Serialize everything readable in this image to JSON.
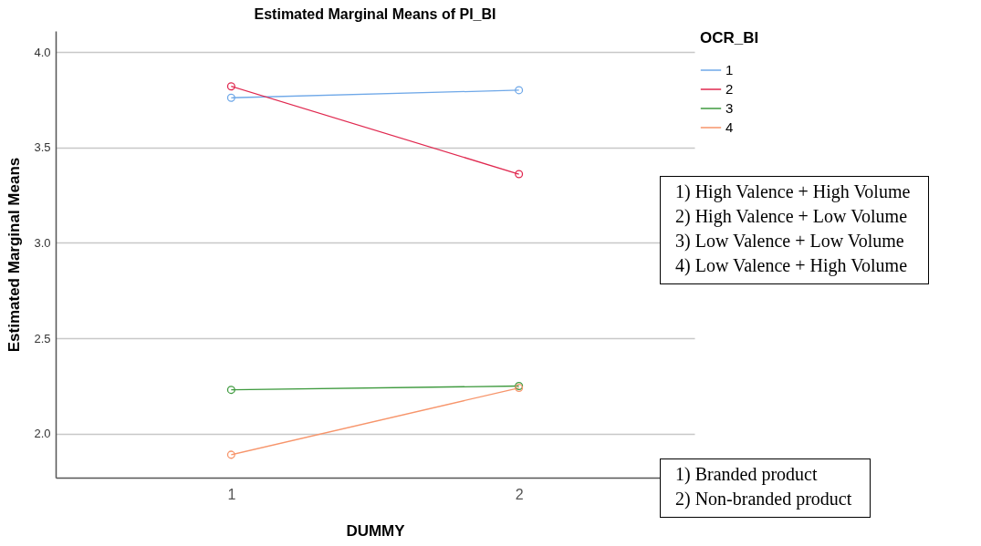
{
  "chart_data": {
    "type": "line",
    "title": "Estimated Marginal Means of PI_BI",
    "xlabel": "DUMMY",
    "ylabel": "Estimated Marginal Means",
    "legend_title": "OCR_BI",
    "categories": [
      "1",
      "2"
    ],
    "series": [
      {
        "name": "1",
        "color": "#6fa8e8",
        "values": [
          3.76,
          3.8
        ]
      },
      {
        "name": "2",
        "color": "#e0284f",
        "values": [
          3.82,
          3.36
        ]
      },
      {
        "name": "3",
        "color": "#3e9a3e",
        "values": [
          2.23,
          2.25
        ]
      },
      {
        "name": "4",
        "color": "#f7956b",
        "values": [
          1.89,
          2.24
        ]
      }
    ],
    "ylim": [
      1.77,
      4.11
    ],
    "yticks": [
      {
        "value": 2,
        "label": "2.0"
      },
      2.5,
      {
        "value": 3,
        "label": "3.0"
      },
      3.5,
      {
        "value": 4,
        "label": "4.0"
      }
    ],
    "grid": "y",
    "legend": "top right",
    "marker": "circle",
    "line_style": "solid",
    "annotations": [
      "1) High Valence + High Volume\n2) High Valence + Low Volume\n3) Low Valence + Low Volume\n4) Low Valence + High Volume",
      "1) Branded product\n2) Non-branded product"
    ]
  }
}
